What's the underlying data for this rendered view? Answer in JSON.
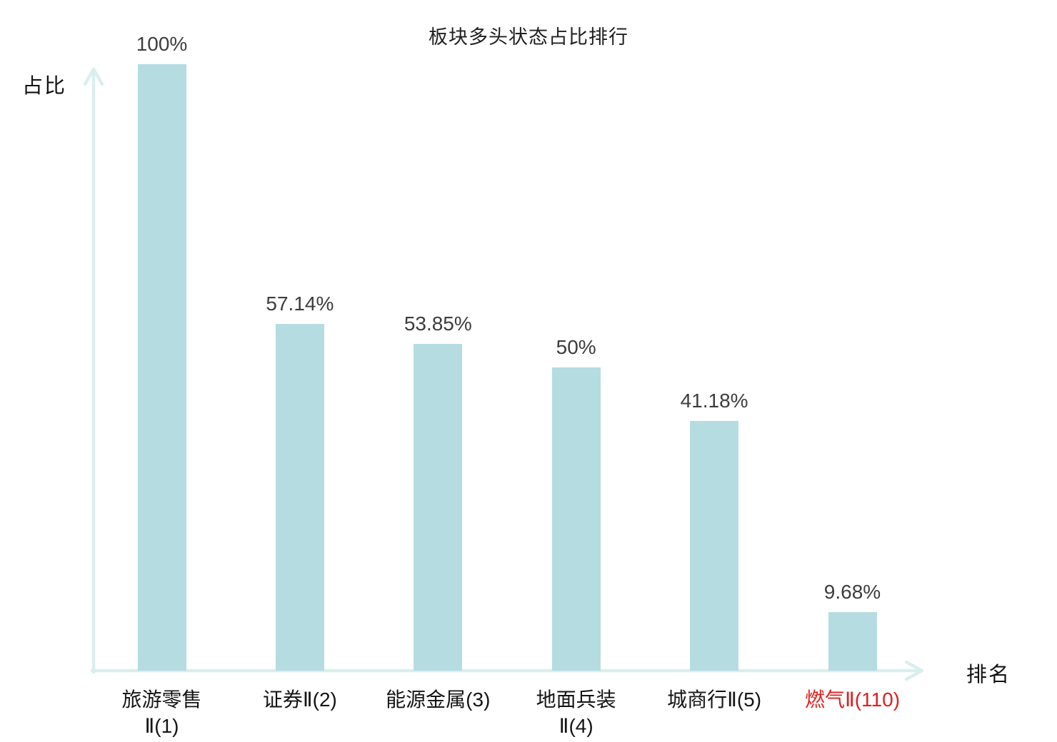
{
  "chart_data": {
    "type": "bar",
    "title": "板块多头状态占比排行",
    "xlabel": "排名",
    "ylabel": "占比",
    "ylim": [
      0,
      100
    ],
    "grid": false,
    "legend": false,
    "categories": [
      "旅游零售\nⅡ(1)",
      "证券Ⅱ(2)",
      "能源金属(3)",
      "地面兵装\nⅡ(4)",
      "城商行Ⅱ(5)",
      "燃气Ⅱ(110)"
    ],
    "values": [
      100,
      57.14,
      53.85,
      50,
      41.18,
      9.68
    ],
    "value_labels": [
      "100%",
      "57.14%",
      "53.85%",
      "50%",
      "41.18%",
      "9.68%"
    ],
    "highlight_index": 5,
    "colors": {
      "bar_fill": "#b5dde1",
      "axis": "#d9efee",
      "value_text": "#3d3d3d",
      "category_text": "#141414",
      "highlight_text": "#e02020"
    }
  }
}
